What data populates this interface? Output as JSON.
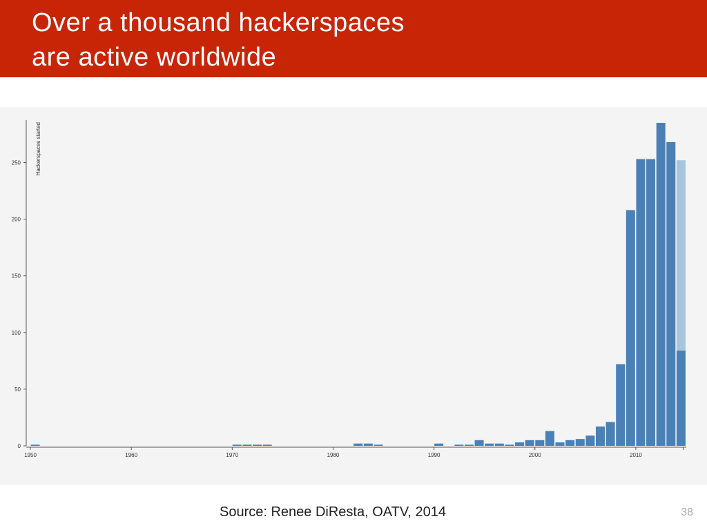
{
  "slide": {
    "title_line1": "Over a thousand hackerspaces",
    "title_line2": "are active worldwide",
    "source": "Source: Renee DiResta, OATV, 2014",
    "page_number": "38"
  },
  "colors": {
    "header": "#c82506",
    "bar": "#4a80b5",
    "bar_partial": "#a9c4dd",
    "panel": "#f4f4f4"
  },
  "chart_data": {
    "type": "bar",
    "ylabel": "Hackerspaces started",
    "xlabel": "",
    "xlim": [
      1950,
      2015
    ],
    "ylim": [
      0,
      285
    ],
    "x_ticks": [
      1950,
      1960,
      1970,
      1980,
      1990,
      2000,
      2010
    ],
    "x_tick_labels": [
      "1950",
      "1960",
      "1970",
      "1980",
      "1990",
      "2000",
      "2010"
    ],
    "y_ticks": [
      0,
      50,
      100,
      150,
      200,
      250
    ],
    "y_tick_labels": [
      "0",
      "50",
      "100",
      "150",
      "200",
      "250"
    ],
    "grid": false,
    "series": [
      {
        "x": [
          1950,
          1970,
          1971,
          1972,
          1973,
          1982,
          1983,
          1984,
          1990,
          1992,
          1993,
          1994,
          1995,
          1996,
          1997,
          1998,
          1999,
          2000,
          2001,
          2002,
          2003,
          2004,
          2005,
          2006,
          2007,
          2008,
          2009,
          2010,
          2011,
          2012,
          2013,
          2014
        ],
        "values": [
          1,
          1,
          1,
          1,
          1,
          2,
          2,
          1,
          2,
          1,
          1,
          5,
          2,
          2,
          1,
          3,
          5,
          5,
          13,
          3,
          5,
          6,
          9,
          17,
          21,
          72,
          208,
          253,
          253,
          285,
          268,
          84
        ]
      },
      {
        "x": [
          2014
        ],
        "values": [
          168
        ]
      }
    ]
  }
}
